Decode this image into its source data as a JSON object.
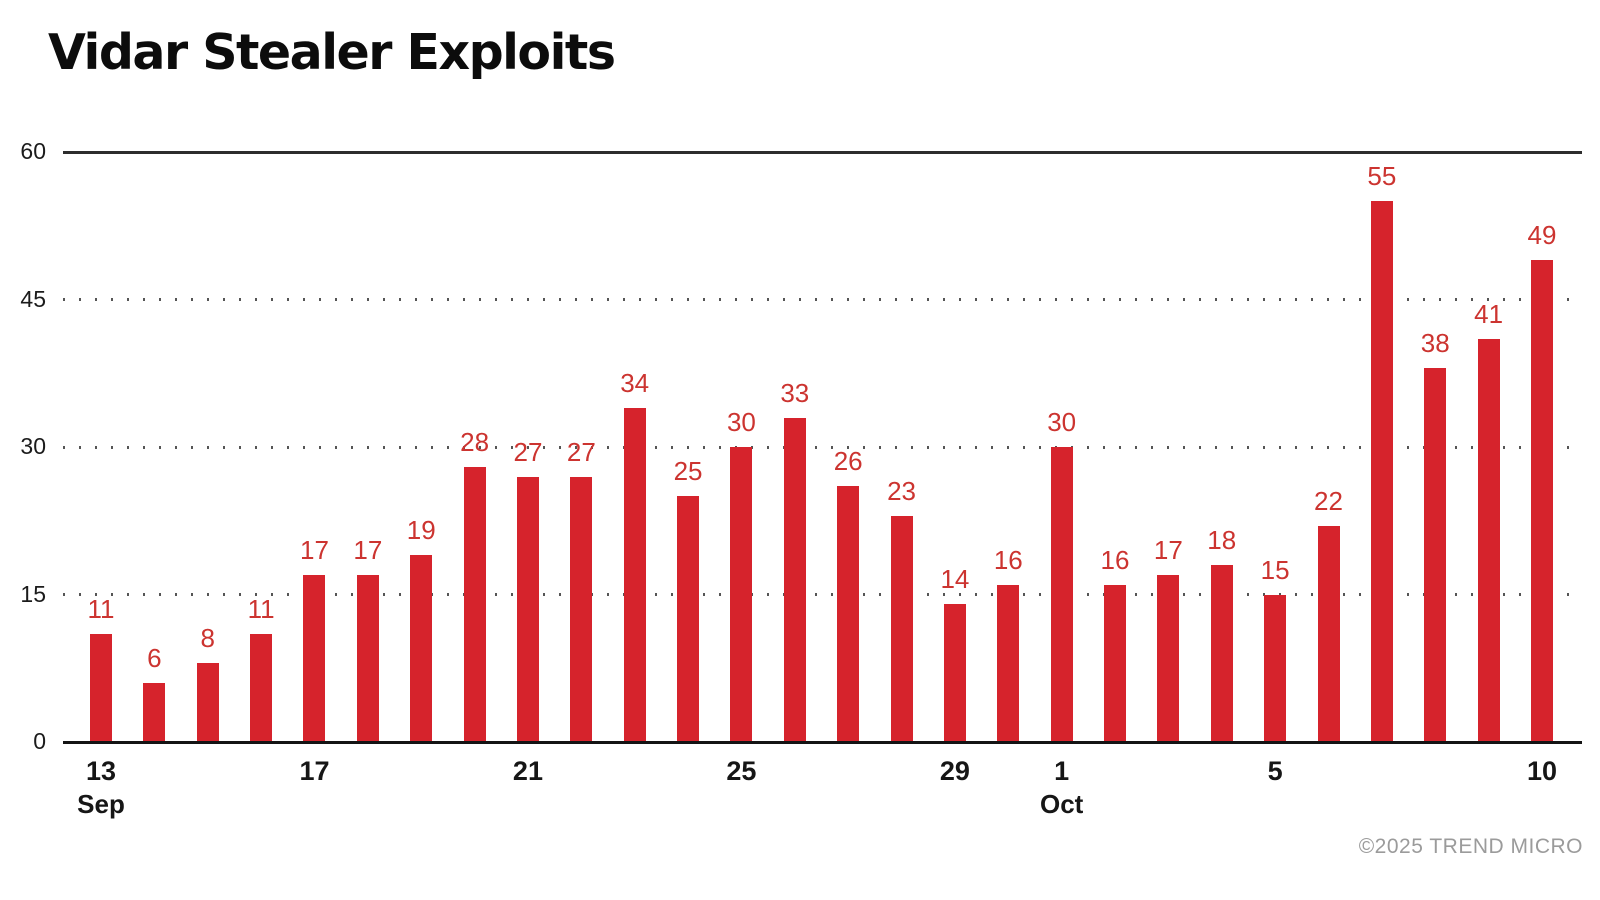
{
  "title": "Vidar Stealer Exploits",
  "credit": "©2025 TREND MICRO",
  "chart_data": {
    "type": "bar",
    "title": "Vidar Stealer Exploits",
    "xlabel": "",
    "ylabel": "",
    "ylim": [
      0,
      60
    ],
    "yticks": [
      0,
      15,
      30,
      45,
      60
    ],
    "grid": "horizontal dotted at 15/30/45, solid line at 60 (top) and 0 (baseline)",
    "legend": "none",
    "bar_color": "#d6232c",
    "value_label_color": "#cc3430",
    "categories": [
      "Sep 13",
      "Sep 14",
      "Sep 15",
      "Sep 16",
      "Sep 17",
      "Sep 18",
      "Sep 19",
      "Sep 20",
      "Sep 21",
      "Sep 22",
      "Sep 23",
      "Sep 24",
      "Sep 25",
      "Sep 26",
      "Sep 27",
      "Sep 28",
      "Sep 29",
      "Sep 30",
      "Oct 1",
      "Oct 2",
      "Oct 3",
      "Oct 4",
      "Oct 5",
      "Oct 6",
      "Oct 7",
      "Oct 8",
      "Oct 9",
      "Oct 10"
    ],
    "values": [
      11,
      6,
      8,
      11,
      17,
      17,
      19,
      28,
      27,
      27,
      34,
      25,
      30,
      33,
      26,
      23,
      14,
      16,
      30,
      16,
      17,
      18,
      15,
      22,
      55,
      38,
      41,
      49
    ],
    "xticks": [
      {
        "index": 0,
        "day": "13",
        "month": "Sep"
      },
      {
        "index": 4,
        "day": "17"
      },
      {
        "index": 8,
        "day": "21"
      },
      {
        "index": 12,
        "day": "25"
      },
      {
        "index": 16,
        "day": "29"
      },
      {
        "index": 18,
        "day": "1",
        "month": "Oct"
      },
      {
        "index": 22,
        "day": "5"
      },
      {
        "index": 27,
        "day": "10"
      }
    ]
  }
}
